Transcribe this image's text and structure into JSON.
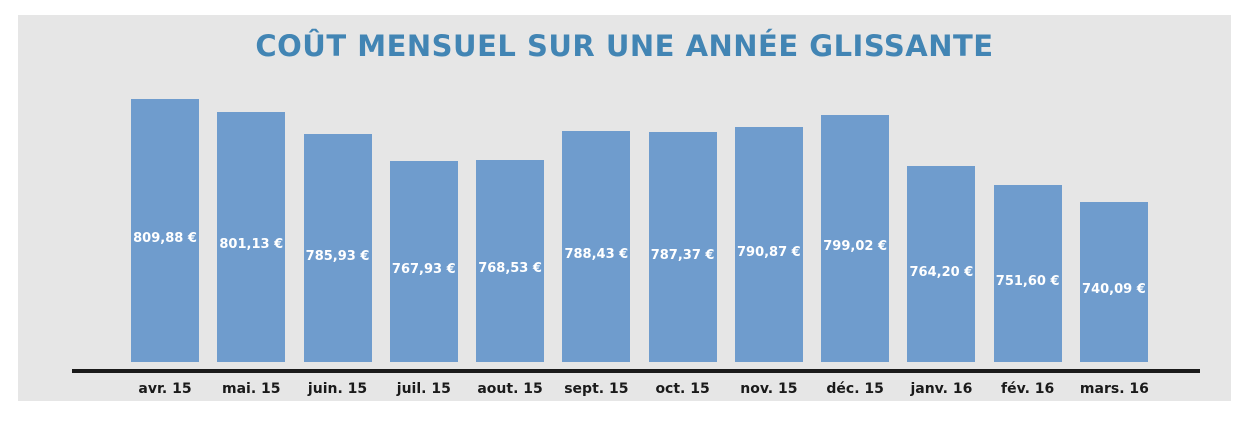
{
  "page": {
    "background_color": "#ffffff",
    "panel_background_color": "#e6e6e6"
  },
  "chart_data": {
    "type": "bar",
    "title": "COÛT MENSUEL SUR UNE ANNÉE GLISSANTE",
    "title_color": "#4285b4",
    "bar_color": "#6f9ccd",
    "value_label_color": "#ffffff",
    "axis_line_color": "#1a1a1a",
    "tick_label_color": "#1a1a1a",
    "xlabel": "",
    "ylabel": "",
    "grid": false,
    "legend": false,
    "ylim": [
      631,
      831
    ],
    "categories": [
      "avr. 15",
      "mai. 15",
      "juin. 15",
      "juil. 15",
      "aout. 15",
      "sept. 15",
      "oct. 15",
      "nov. 15",
      "déc. 15",
      "janv. 16",
      "fév. 16",
      "mars. 16"
    ],
    "values": [
      809.88,
      801.13,
      785.93,
      767.93,
      768.53,
      788.43,
      787.37,
      790.87,
      799.02,
      764.2,
      751.6,
      740.09
    ],
    "value_labels": [
      "809,88 €",
      "801,13 €",
      "785,93 €",
      "767,93 €",
      "768,53 €",
      "788,43 €",
      "787,37 €",
      "790,87 €",
      "799,02 €",
      "764,20 €",
      "751,60 €",
      "740,09 €"
    ]
  }
}
